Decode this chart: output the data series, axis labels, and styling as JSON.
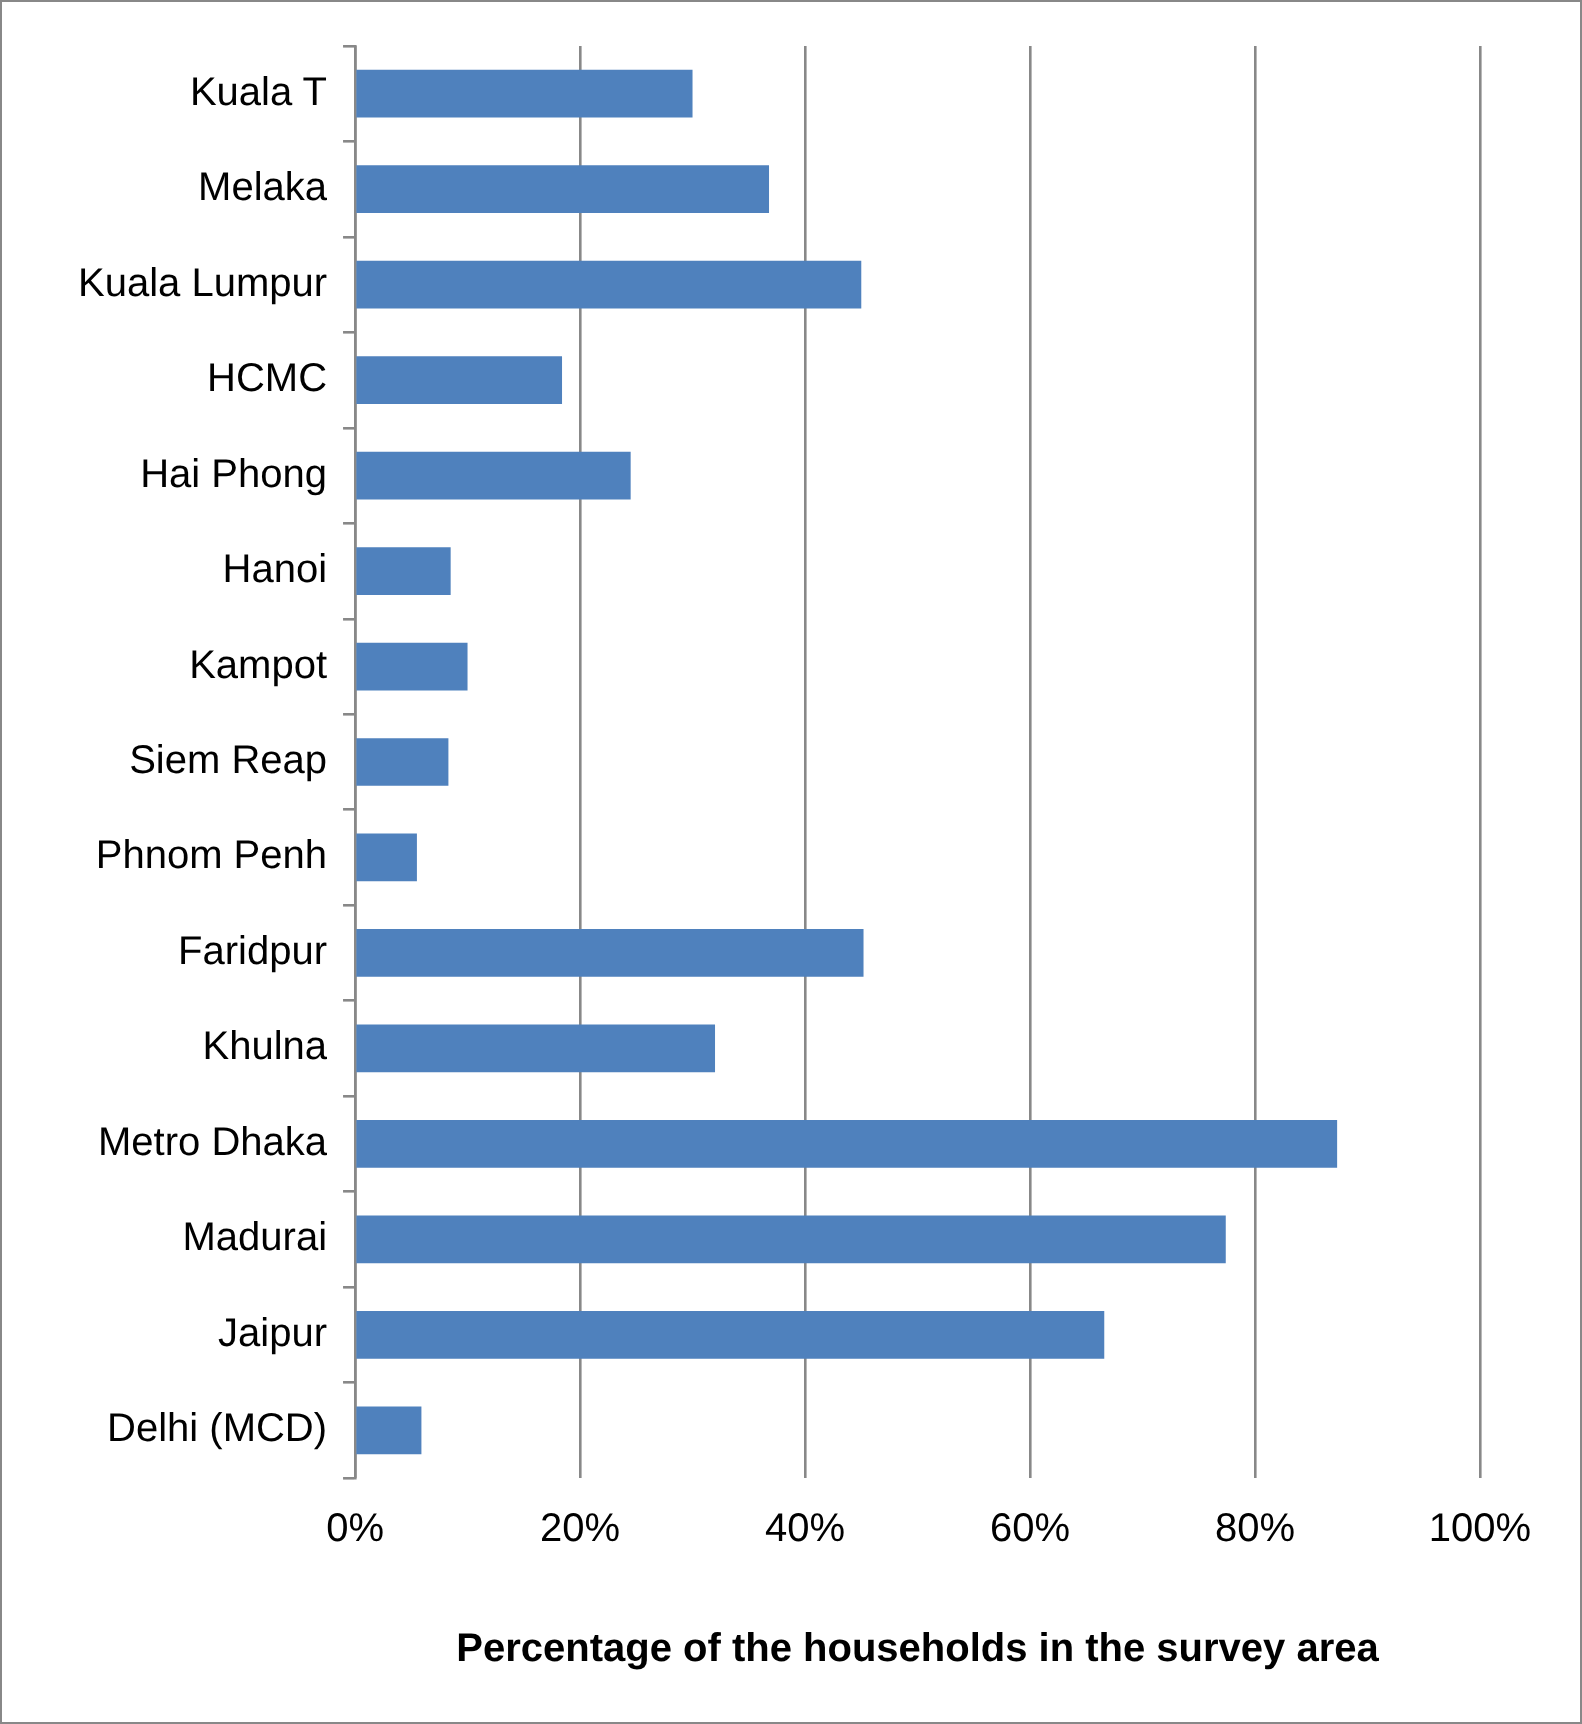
{
  "chart_data": {
    "type": "bar",
    "orientation": "horizontal",
    "xlabel": "Percentage of the households in the survey area",
    "categories": [
      "Kuala T",
      "Melaka",
      "Kuala Lumpur",
      "HCMC",
      "Hai Phong",
      "Hanoi",
      "Kampot",
      "Siem Reap",
      "Phnom Penh",
      "Faridpur",
      "Khulna",
      "Metro Dhaka",
      "Madurai",
      "Jaipur",
      "Delhi (MCD)"
    ],
    "values": [
      30,
      36.8,
      45,
      18.4,
      24.5,
      8.5,
      10,
      8.3,
      5.5,
      45.2,
      32,
      87.3,
      77.4,
      66.6,
      5.9
    ],
    "color": "#4f81bd",
    "xlim": [
      0,
      100
    ],
    "xticks": [
      {
        "value": 0,
        "label": "0%"
      },
      {
        "value": 20,
        "label": "20%"
      },
      {
        "value": 40,
        "label": "40%"
      },
      {
        "value": 60,
        "label": "60%"
      },
      {
        "value": 80,
        "label": "80%"
      },
      {
        "value": 100,
        "label": "100%"
      }
    ],
    "grid": "x",
    "legend": false
  }
}
